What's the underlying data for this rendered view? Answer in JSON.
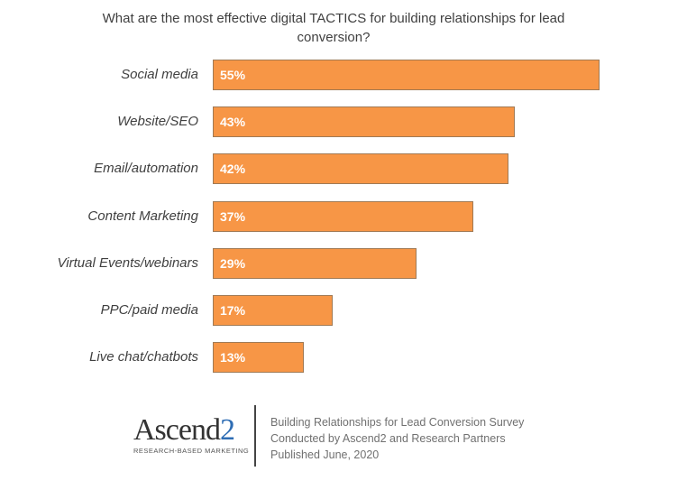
{
  "chart_data": {
    "type": "bar",
    "orientation": "horizontal",
    "title": "What are the most effective digital TACTICS for building relationships for lead conversion?",
    "categories": [
      "Social media",
      "Website/SEO",
      "Email/automation",
      "Content Marketing",
      "Virtual Events/webinars",
      "PPC/paid media",
      "Live chat/chatbots"
    ],
    "values": [
      55,
      43,
      42,
      37,
      29,
      17,
      13
    ],
    "data_labels": [
      "55%",
      "43%",
      "42%",
      "37%",
      "29%",
      "17%",
      "13%"
    ],
    "bar_color": "#f79646",
    "grid": false
  },
  "footer": {
    "logo_text": "Ascend2",
    "logo_tagline": "RESEARCH-BASED MARKETING",
    "lines": [
      "Building Relationships for Lead Conversion Survey",
      "Conducted by Ascend2 and Research Partners",
      "Published June, 2020"
    ]
  }
}
